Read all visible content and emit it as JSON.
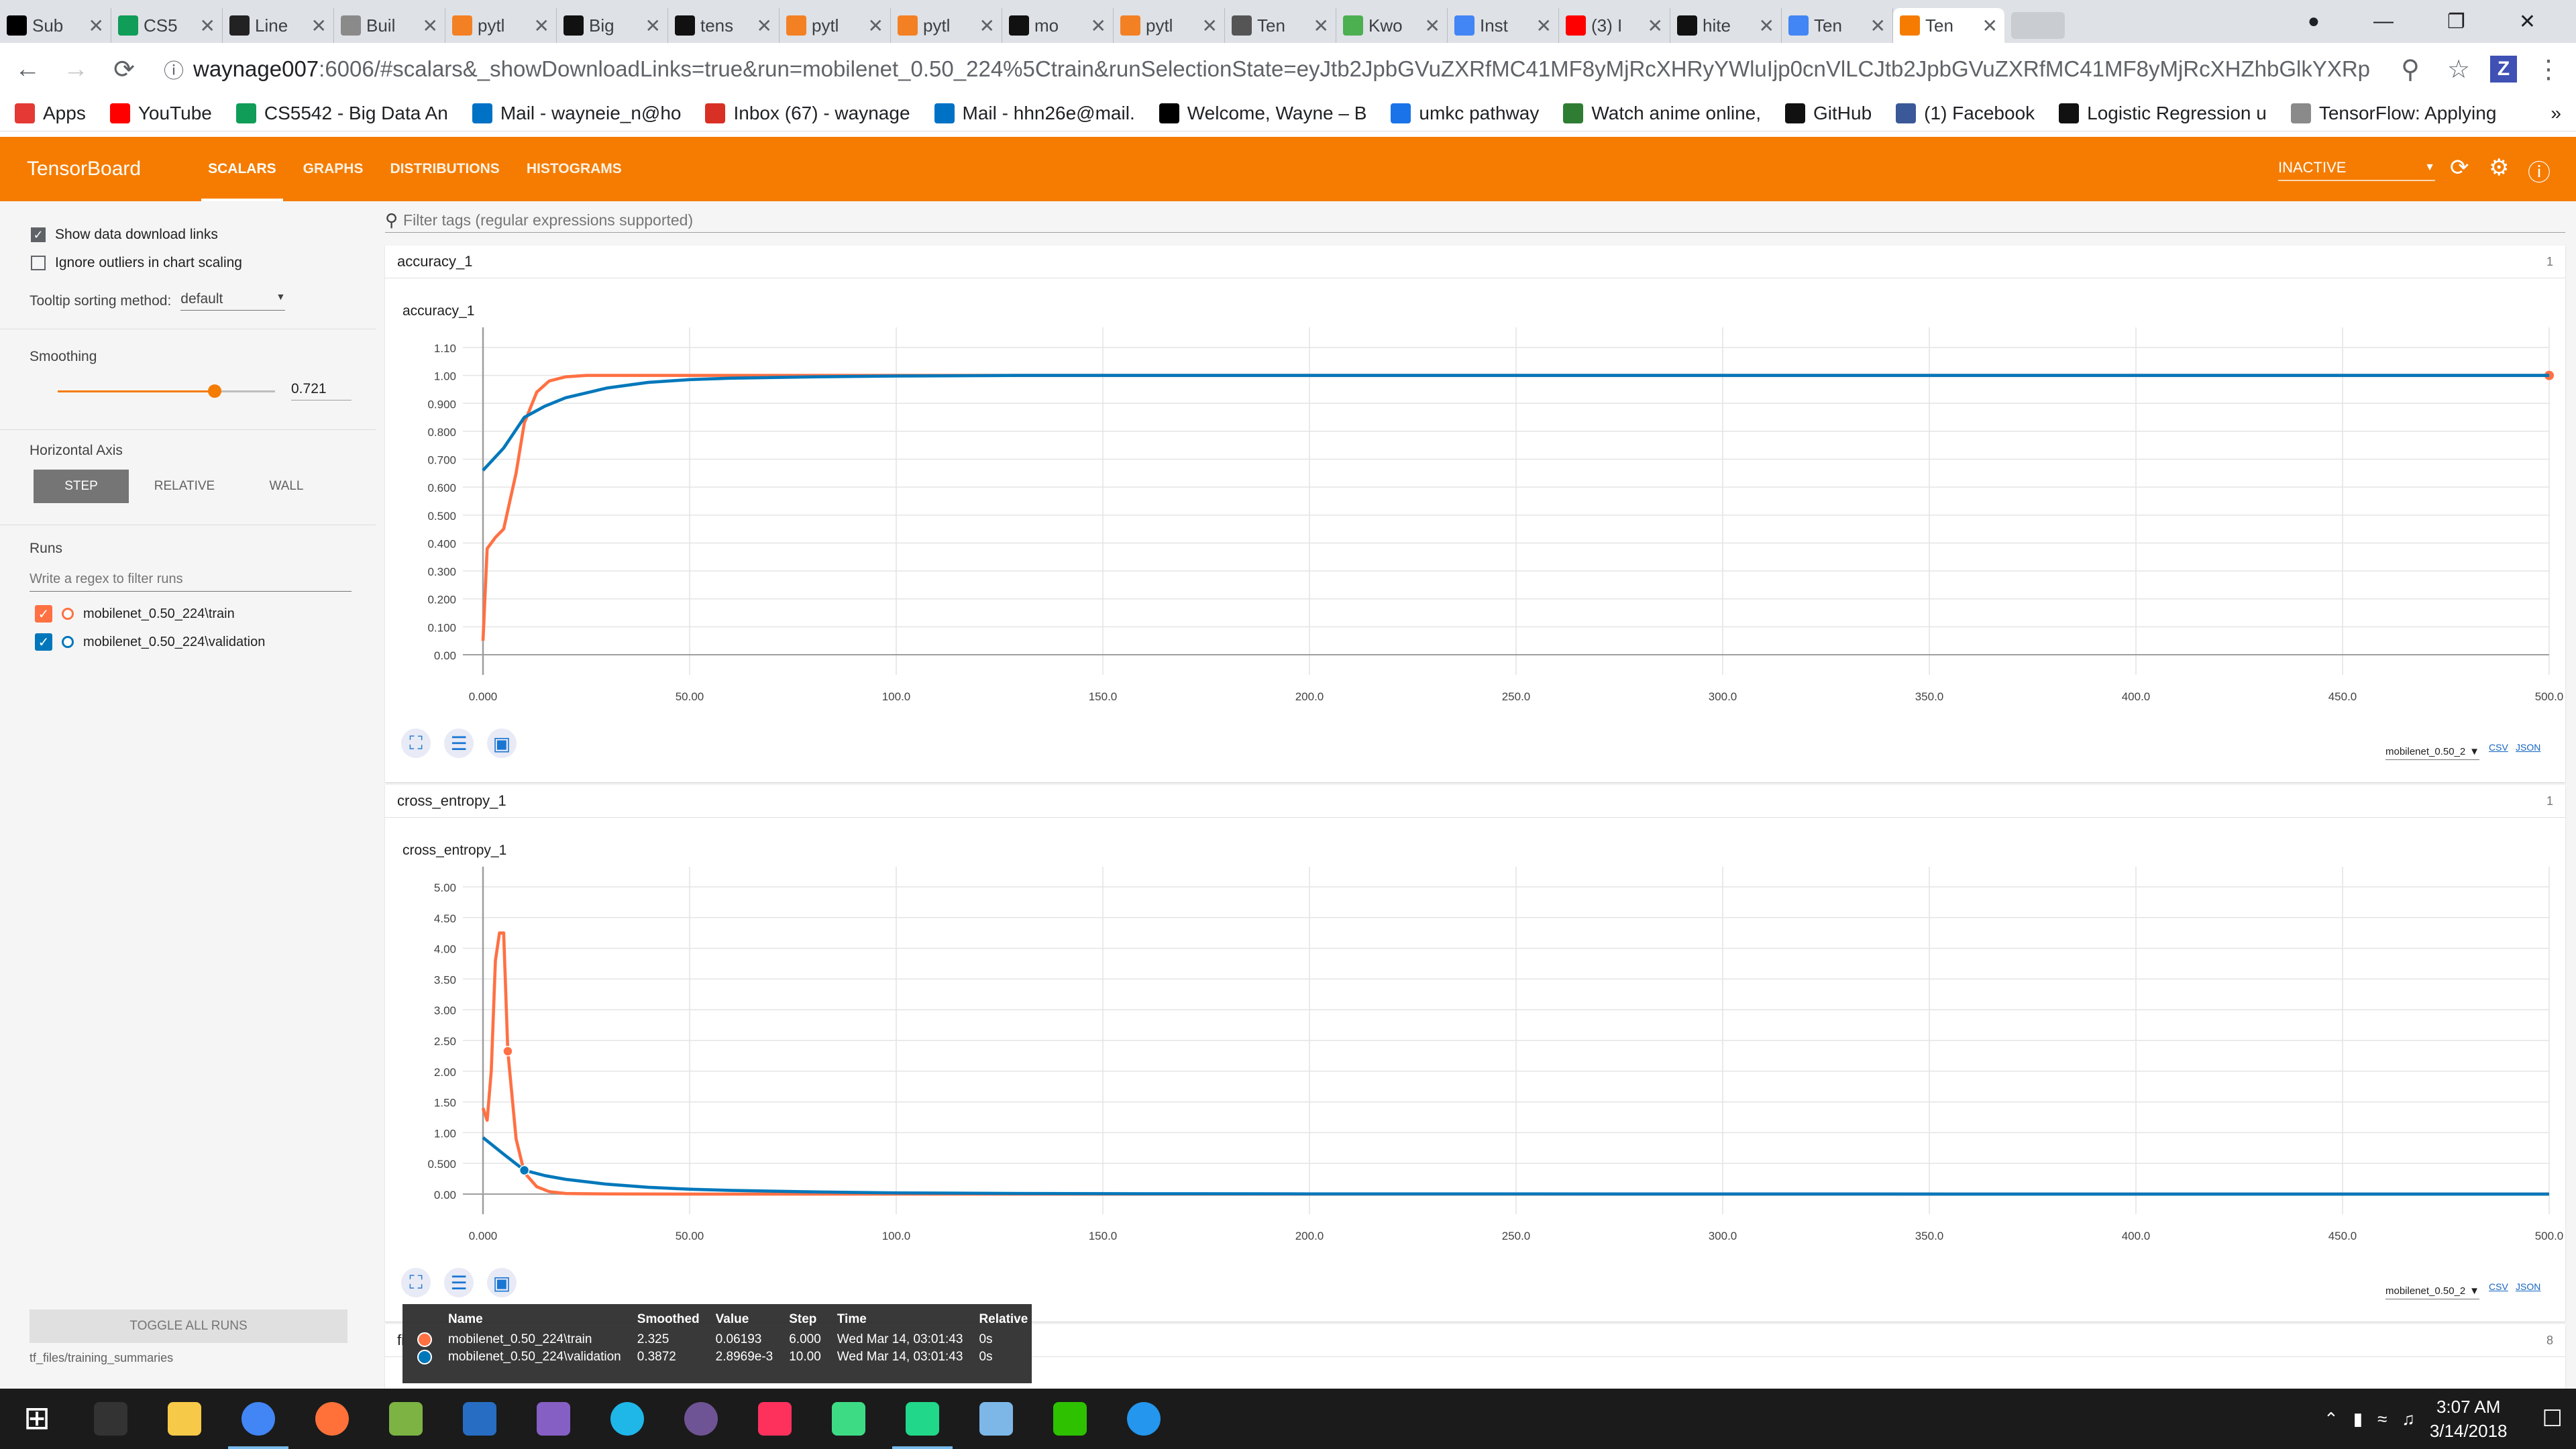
{
  "browser": {
    "tabs": [
      {
        "title": "Sub",
        "color": "#000000"
      },
      {
        "title": "CS5",
        "color": "#0f9d58"
      },
      {
        "title": "Line",
        "color": "#222222"
      },
      {
        "title": "Buil",
        "color": "#8a8a8a"
      },
      {
        "title": "pytl",
        "color": "#f48024"
      },
      {
        "title": "Big",
        "color": "#111111"
      },
      {
        "title": "tens",
        "color": "#111111"
      },
      {
        "title": "pytl",
        "color": "#f48024"
      },
      {
        "title": "pytl",
        "color": "#f48024"
      },
      {
        "title": "mo",
        "color": "#111111"
      },
      {
        "title": "pytl",
        "color": "#f48024"
      },
      {
        "title": "Ten",
        "color": "#555555"
      },
      {
        "title": "Kwo",
        "color": "#4caf50"
      },
      {
        "title": "Inst",
        "color": "#4285f4"
      },
      {
        "title": "(3) I",
        "color": "#ff0000"
      },
      {
        "title": "hite",
        "color": "#111111"
      },
      {
        "title": "Ten",
        "color": "#4285f4"
      },
      {
        "title": "Ten",
        "color": "#f57c00"
      }
    ],
    "active_tab_index": 17,
    "close_glyph": "✕",
    "url_host": "waynage007",
    "url_rest": ":6006/#scalars&_showDownloadLinks=true&run=mobilenet_0.50_224%5Ctrain&runSelectionState=eyJtb2JpbGVuZXRfMC41MF8yMjRcXHRyYWluIjp0cnVlLCJtb2JpbGVuZXRfMC41MF8yMjRcXHZhbGlkYXRpb24iOnRydWV9&_...",
    "extension_label": "Z",
    "bookmarks": [
      {
        "label": "Apps",
        "color": "#e53935"
      },
      {
        "label": "YouTube",
        "color": "#ff0000"
      },
      {
        "label": "CS5542 - Big Data An",
        "color": "#0f9d58"
      },
      {
        "label": "Mail - wayneie_n@ho",
        "color": "#0072c6"
      },
      {
        "label": "Inbox (67) - waynage",
        "color": "#d93025"
      },
      {
        "label": "Mail - hhn26e@mail.",
        "color": "#0072c6"
      },
      {
        "label": "Welcome, Wayne – B",
        "color": "#000000"
      },
      {
        "label": "umkc pathway",
        "color": "#1a73e8"
      },
      {
        "label": "Watch anime online,",
        "color": "#2e7d32"
      },
      {
        "label": "GitHub",
        "color": "#111111"
      },
      {
        "label": "(1) Facebook",
        "color": "#3b5998"
      },
      {
        "label": "Logistic Regression u",
        "color": "#111111"
      },
      {
        "label": "TensorFlow: Applying",
        "color": "#8a8a8a"
      }
    ]
  },
  "tensorboard": {
    "title": "TensorBoard",
    "tabs": [
      "SCALARS",
      "GRAPHS",
      "DISTRIBUTIONS",
      "HISTOGRAMS"
    ],
    "active_tab": 0,
    "status": "INACTIVE",
    "accent": "#f57c00"
  },
  "sidebar": {
    "show_download_links": {
      "label": "Show data download links",
      "checked": true
    },
    "ignore_outliers": {
      "label": "Ignore outliers in chart scaling",
      "checked": false
    },
    "tooltip_sort_label": "Tooltip sorting method:",
    "tooltip_sort_value": "default",
    "smoothing_label": "Smoothing",
    "smoothing_value": "0.721",
    "smoothing_fraction": 0.721,
    "horizontal_axis_label": "Horizontal Axis",
    "axis_options": [
      "STEP",
      "RELATIVE",
      "WALL"
    ],
    "axis_active": 0,
    "runs_label": "Runs",
    "runs_filter_placeholder": "Write a regex to filter runs",
    "runs": [
      {
        "name": "mobilenet_0.50_224\\train",
        "color": "#ff7043",
        "checked": true
      },
      {
        "name": "mobilenet_0.50_224\\validation",
        "color": "#0077bb",
        "checked": true
      }
    ],
    "toggle_all_label": "TOGGLE ALL RUNS",
    "logdir": "tf_files/training_summaries"
  },
  "main": {
    "filter_placeholder": "Filter tags (regular expressions supported)",
    "cards": [
      {
        "name": "accuracy_1",
        "count": "1",
        "chart_title": "accuracy_1"
      },
      {
        "name": "cross_entropy_1",
        "count": "1",
        "chart_title": "cross_entropy_1"
      },
      {
        "name": "fi",
        "count": "8"
      }
    ],
    "download_select": "mobilenet_0.50_2",
    "csv_label": "CSV",
    "json_label": "JSON"
  },
  "chart_data": [
    {
      "type": "line",
      "title": "accuracy_1",
      "xlim": [
        0,
        500
      ],
      "ylim": [
        0,
        1.1
      ],
      "x_ticks": [
        "0.000",
        "50.00",
        "100.0",
        "150.0",
        "200.0",
        "250.0",
        "300.0",
        "350.0",
        "400.0",
        "450.0",
        "500.0"
      ],
      "y_ticks": [
        "0.00",
        "0.100",
        "0.200",
        "0.300",
        "0.400",
        "0.500",
        "0.600",
        "0.700",
        "0.800",
        "0.900",
        "1.00",
        "1.10"
      ],
      "grid": true,
      "series": [
        {
          "run": 0,
          "color": "#ff7043",
          "x": [
            0,
            1,
            3,
            5,
            8,
            10,
            13,
            16,
            20,
            25,
            30,
            40,
            60,
            100,
            200,
            300,
            400,
            500
          ],
          "y": [
            0.05,
            0.38,
            0.42,
            0.45,
            0.65,
            0.83,
            0.94,
            0.98,
            0.995,
            1.0,
            1.0,
            1.0,
            1.0,
            1.0,
            1.0,
            1.0,
            1.0,
            1.0
          ],
          "end_marker": true
        },
        {
          "run": 1,
          "color": "#0077bb",
          "x": [
            0,
            5,
            10,
            15,
            20,
            30,
            40,
            50,
            60,
            80,
            100,
            130,
            160,
            200,
            300,
            400,
            500
          ],
          "y": [
            0.66,
            0.74,
            0.85,
            0.89,
            0.92,
            0.955,
            0.975,
            0.985,
            0.99,
            0.995,
            0.998,
            1.0,
            1.0,
            1.0,
            1.0,
            1.0,
            1.0
          ]
        }
      ]
    },
    {
      "type": "line",
      "title": "cross_entropy_1",
      "xlim": [
        0,
        500
      ],
      "ylim": [
        0,
        5
      ],
      "x_ticks": [
        "0.000",
        "50.00",
        "100.0",
        "150.0",
        "200.0",
        "250.0",
        "300.0",
        "350.0",
        "400.0",
        "450.0",
        "500.0"
      ],
      "y_ticks": [
        "0.00",
        "0.500",
        "1.00",
        "1.50",
        "2.00",
        "2.50",
        "3.00",
        "3.50",
        "4.00",
        "4.50",
        "5.00"
      ],
      "grid": true,
      "series": [
        {
          "run": 0,
          "color": "#ff7043",
          "x": [
            0,
            1,
            2,
            3,
            4,
            5,
            6,
            8,
            10,
            13,
            16,
            20,
            25,
            30,
            50,
            100,
            200,
            300,
            400,
            500
          ],
          "y": [
            1.4,
            1.2,
            2.0,
            3.8,
            4.25,
            4.25,
            2.325,
            0.9,
            0.35,
            0.12,
            0.04,
            0.01,
            0.005,
            0.002,
            0.0,
            0.0,
            0.0,
            0.0,
            0.0,
            0.0
          ],
          "marker_x": 6,
          "marker_y": 2.325
        },
        {
          "run": 1,
          "color": "#0077bb",
          "x": [
            0,
            5,
            10,
            15,
            20,
            30,
            40,
            50,
            60,
            80,
            100,
            130,
            160,
            200,
            300,
            400,
            500
          ],
          "y": [
            0.92,
            0.65,
            0.3872,
            0.3,
            0.24,
            0.16,
            0.11,
            0.08,
            0.06,
            0.035,
            0.02,
            0.01,
            0.006,
            0.003,
            0.001,
            0.0,
            0.0
          ],
          "marker_x": 10,
          "marker_y": 0.3872
        }
      ]
    }
  ],
  "tooltip": {
    "headers": [
      "Name",
      "Smoothed",
      "Value",
      "Step",
      "Time",
      "Relative"
    ],
    "rows": [
      {
        "color": "#ff7043",
        "name": "mobilenet_0.50_224\\train",
        "smoothed": "2.325",
        "value": "0.06193",
        "step": "6.000",
        "time": "Wed Mar 14, 03:01:43",
        "relative": "0s"
      },
      {
        "color": "#0077bb",
        "name": "mobilenet_0.50_224\\validation",
        "smoothed": "0.3872",
        "value": "2.8969e-3",
        "step": "10.00",
        "time": "Wed Mar 14, 03:01:43",
        "relative": "0s"
      }
    ]
  },
  "taskbar": {
    "apps": [
      {
        "name": "windows-start-icon",
        "color": "#ffffff"
      },
      {
        "name": "task-view-icon",
        "color": "#333333"
      },
      {
        "name": "file-explorer-icon",
        "color": "#f7c948"
      },
      {
        "name": "chrome-icon",
        "color": "#4285f4",
        "running": true
      },
      {
        "name": "firefox-icon",
        "color": "#ff7139"
      },
      {
        "name": "notepad-plus-icon",
        "color": "#7cb342"
      },
      {
        "name": "r-icon",
        "color": "#276dc3"
      },
      {
        "name": "visual-studio-icon",
        "color": "#865fc5"
      },
      {
        "name": "webstorm-icon",
        "color": "#1eb7e8"
      },
      {
        "name": "github-desktop-icon",
        "color": "#6e5494"
      },
      {
        "name": "intellij-icon",
        "color": "#fe315d"
      },
      {
        "name": "android-studio-icon",
        "color": "#3ddc84"
      },
      {
        "name": "pycharm-icon",
        "color": "#21d789",
        "running": true
      },
      {
        "name": "virtualbox-icon",
        "color": "#7cb7e8"
      },
      {
        "name": "wechat-icon",
        "color": "#2dc100"
      },
      {
        "name": "docker-icon",
        "color": "#2496ed"
      }
    ],
    "time": "3:07 AM",
    "date": "3/14/2018"
  }
}
